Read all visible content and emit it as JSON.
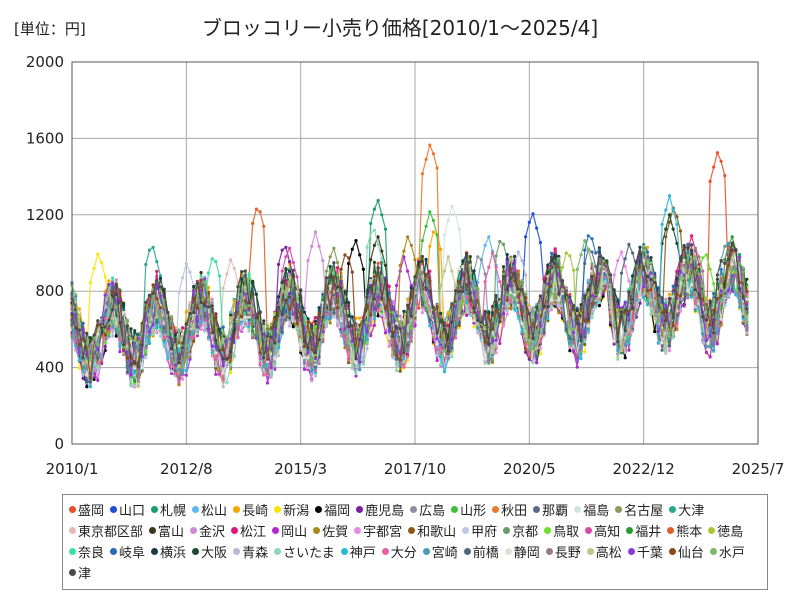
{
  "chart_data": {
    "type": "line",
    "title": "ブロッコリー小売り価格[2010/1～2025/4]",
    "unit_label": "[単位：円]",
    "ylim": [
      0,
      2000
    ],
    "yticks": [
      "0",
      "400",
      "800",
      "1200",
      "1600",
      "2000"
    ],
    "xticks": [
      "2010/1",
      "2012/8",
      "2015/3",
      "2017/10",
      "2020/5",
      "2022/12",
      "2025/7"
    ],
    "x_start": "2010/1",
    "x_end": "2025/7",
    "grid": true,
    "legend_position": "bottom",
    "series": [
      {
        "name": "盛岡",
        "color": "#e8502a",
        "peak": 1540,
        "peak_at": 2024.6
      },
      {
        "name": "山口",
        "color": "#1f4fd6",
        "peak": 1220,
        "peak_at": 2020.4
      },
      {
        "name": "札幌",
        "color": "#1a9e6e",
        "peak": 1290,
        "peak_at": 2016.9
      },
      {
        "name": "松山",
        "color": "#5cb8f0",
        "peak": 1100,
        "peak_at": 2019.4
      },
      {
        "name": "長崎",
        "color": "#f2a800",
        "peak": 1140,
        "peak_at": 2018.2
      },
      {
        "name": "新潟",
        "color": "#f5e60a",
        "peak": 1010,
        "peak_at": 2010.6
      },
      {
        "name": "福岡",
        "color": "#000000",
        "peak": 1080,
        "peak_at": 2016.4
      },
      {
        "name": "鹿児島",
        "color": "#7a1fa0",
        "peak": 1060,
        "peak_at": 2014.8
      },
      {
        "name": "広島",
        "color": "#8a8fa6",
        "peak": 1010,
        "peak_at": 2019.2
      },
      {
        "name": "山形",
        "color": "#3fbf3a",
        "peak": 1230,
        "peak_at": 2018.1
      },
      {
        "name": "秋田",
        "color": "#ec7a2b",
        "peak": 1580,
        "peak_at": 2018.1
      },
      {
        "name": "那覇",
        "color": "#5a6a8a",
        "peak": 1050,
        "peak_at": 2021.7
      },
      {
        "name": "福島",
        "color": "#cfe6e6",
        "peak": 1260,
        "peak_at": 2018.6
      },
      {
        "name": "名古屋",
        "color": "#8a9a5a",
        "peak": 1040,
        "peak_at": 2015.9
      },
      {
        "name": "大津",
        "color": "#2aa88a",
        "peak": 1060,
        "peak_at": 2011.8
      },
      {
        "name": "東京都区部",
        "color": "#e8b8b8",
        "peak": 980,
        "peak_at": 2013.6
      },
      {
        "name": "富山",
        "color": "#3a3a1a",
        "peak": 1100,
        "peak_at": 2016.9
      },
      {
        "name": "金沢",
        "color": "#d08ad8",
        "peak": 1110,
        "peak_at": 2015.5
      },
      {
        "name": "松江",
        "color": "#e0157a",
        "peak": 1090,
        "peak_at": 2024.0
      },
      {
        "name": "岡山",
        "color": "#b02ad0",
        "peak": 980,
        "peak_at": 2017.5
      },
      {
        "name": "佐賀",
        "color": "#a8861a",
        "peak": 1100,
        "peak_at": 2017.6
      },
      {
        "name": "宇都宮",
        "color": "#e88ae0",
        "peak": 1020,
        "peak_at": 2022.4
      },
      {
        "name": "和歌山",
        "color": "#8a5a10",
        "peak": 1250,
        "peak_at": 2023.6
      },
      {
        "name": "甲府",
        "color": "#b8c8e8",
        "peak": 960,
        "peak_at": 2012.6
      },
      {
        "name": "京都",
        "color": "#6a9a6a",
        "peak": 1090,
        "peak_at": 2019.7
      },
      {
        "name": "鳥取",
        "color": "#6ae02a",
        "peak": 1020,
        "peak_at": 2024.3
      },
      {
        "name": "高知",
        "color": "#d84aa8",
        "peak": 1040,
        "peak_at": 2014.9
      },
      {
        "name": "福井",
        "color": "#2a9a2a",
        "peak": 1100,
        "peak_at": 2024.9
      },
      {
        "name": "熊本",
        "color": "#e0602a",
        "peak": 1260,
        "peak_at": 2014.2
      },
      {
        "name": "徳島",
        "color": "#a8c83a",
        "peak": 1030,
        "peak_at": 2021.2
      },
      {
        "name": "奈良",
        "color": "#3ae0a0",
        "peak": 1000,
        "peak_at": 2013.2
      },
      {
        "name": "岐阜",
        "color": "#2a6ab8",
        "peak": 1120,
        "peak_at": 2021.7
      },
      {
        "name": "横浜",
        "color": "#1a3a4a",
        "peak": 1000,
        "peak_at": 2022.8
      },
      {
        "name": "大阪",
        "color": "#1a4a2a",
        "peak": 1200,
        "peak_at": 2023.5
      },
      {
        "name": "青森",
        "color": "#b8b8d8",
        "peak": 1020,
        "peak_at": 2020.1
      },
      {
        "name": "さいたま",
        "color": "#8ad8b8",
        "peak": 1150,
        "peak_at": 2016.8
      },
      {
        "name": "神戸",
        "color": "#2ab8d8",
        "peak": 1300,
        "peak_at": 2023.5
      },
      {
        "name": "大分",
        "color": "#e860a0",
        "peak": 1000,
        "peak_at": 2019.5
      },
      {
        "name": "宮崎",
        "color": "#4a9ab8",
        "peak": 1080,
        "peak_at": 2024.8
      },
      {
        "name": "前橋",
        "color": "#4a6a7a",
        "peak": 1060,
        "peak_at": 2022.6
      },
      {
        "name": "静岡",
        "color": "#e0e0d8",
        "peak": 960,
        "peak_at": 2018.8
      },
      {
        "name": "長野",
        "color": "#9a7a8a",
        "peak": 1040,
        "peak_at": 2024.1
      },
      {
        "name": "高松",
        "color": "#b8c88a",
        "peak": 980,
        "peak_at": 2018.5
      },
      {
        "name": "千葉",
        "color": "#8a3ad8",
        "peak": 940,
        "peak_at": 2023.9
      },
      {
        "name": "仙台",
        "color": "#8a4a1a",
        "peak": 1020,
        "peak_at": 2016.2
      },
      {
        "name": "水戸",
        "color": "#7ab86a",
        "peak": 1080,
        "peak_at": 2021.6
      },
      {
        "name": "津",
        "color": "#4a4a4a",
        "peak": 990,
        "peak_at": 2024.7
      }
    ]
  }
}
